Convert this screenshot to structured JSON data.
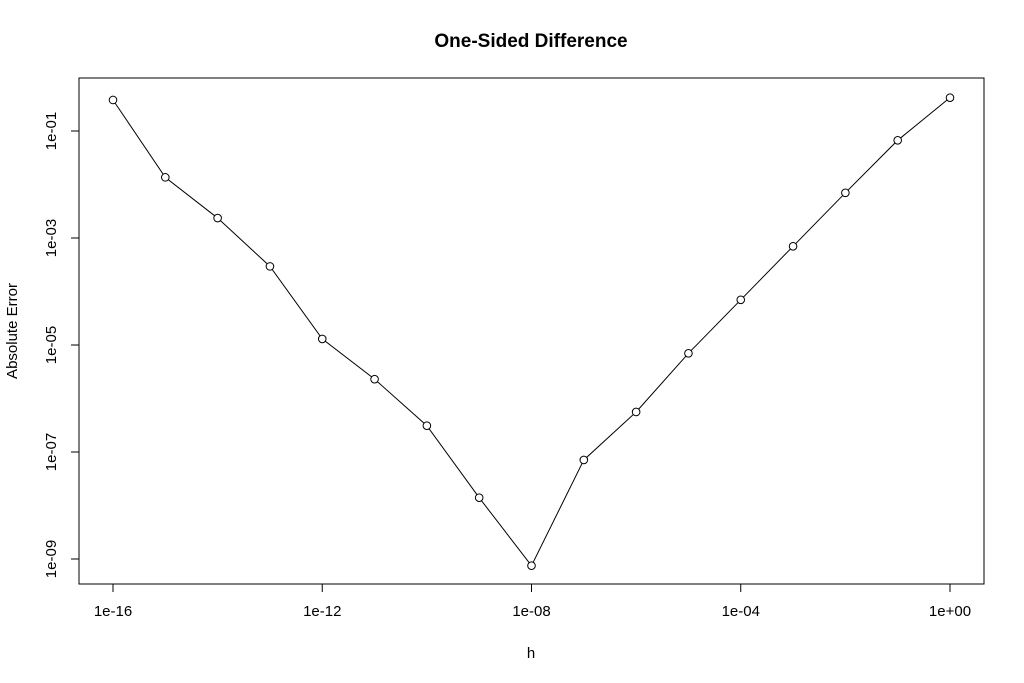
{
  "chart_data": {
    "type": "line",
    "title": "One-Sided Difference",
    "xlabel": "h",
    "ylabel": "Absolute Error",
    "x_scale": "log",
    "y_scale": "log",
    "xlim": [
      1e-16,
      1
    ],
    "ylim": [
      1e-09,
      1
    ],
    "grid": false,
    "marker": "open-circle",
    "line_color": "#000000",
    "x_ticks": [
      {
        "value": 1e-16,
        "label": "1e-16"
      },
      {
        "value": 1e-12,
        "label": "1e-12"
      },
      {
        "value": 1e-08,
        "label": "1e-08"
      },
      {
        "value": 0.0001,
        "label": "1e-04"
      },
      {
        "value": 1,
        "label": "1e+00"
      }
    ],
    "y_ticks": [
      {
        "value": 1e-09,
        "label": "1e-09"
      },
      {
        "value": 1e-07,
        "label": "1e-07"
      },
      {
        "value": 1e-05,
        "label": "1e-05"
      },
      {
        "value": 0.001,
        "label": "1e-03"
      },
      {
        "value": 0.1,
        "label": "1e-01"
      }
    ],
    "series": [
      {
        "x": [
          1e-16,
          1e-15,
          1e-14,
          1e-13,
          1e-12,
          1e-11,
          1e-10,
          1e-09,
          1e-08,
          1e-07,
          1e-06,
          1e-05,
          0.0001,
          0.001,
          0.01,
          0.1,
          1
        ],
        "y": [
          0.38,
          0.0136,
          0.00236,
          0.000295,
          1.3e-05,
          2.3e-06,
          3.1e-07,
          1.4e-08,
          7.5e-10,
          7.1e-08,
          5.6e-07,
          7e-06,
          7e-05,
          0.0007,
          0.007,
          0.067,
          0.42
        ]
      }
    ]
  }
}
